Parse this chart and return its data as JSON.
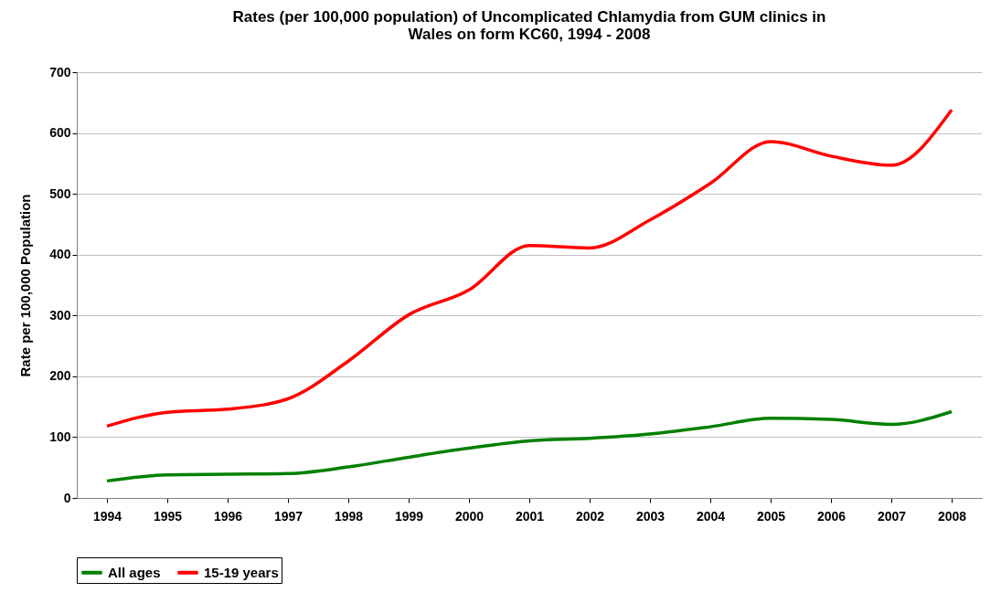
{
  "chart_data": {
    "type": "line",
    "title": "Rates (per 100,000 population) of Uncomplicated Chlamydia from GUM clinics in Wales on form KC60, 1994 - 2008",
    "ylabel": "Rate per 100,000 Population",
    "categories": [
      "1994",
      "1995",
      "1996",
      "1997",
      "1998",
      "1999",
      "2000",
      "2001",
      "2002",
      "2003",
      "2004",
      "2005",
      "2006",
      "2007",
      "2008"
    ],
    "series": [
      {
        "name": "All ages",
        "color": "#008000",
        "values": [
          28,
          38,
          39,
          40,
          51,
          67,
          82,
          94,
          98,
          105,
          117,
          131,
          129,
          121,
          142
        ]
      },
      {
        "name": "15-19 years",
        "color": "#ff0000",
        "values": [
          118,
          141,
          146,
          163,
          225,
          301,
          342,
          415,
          411,
          457,
          517,
          586,
          562,
          547,
          638
        ]
      }
    ],
    "ylim": [
      0,
      700
    ],
    "yticks": [
      0,
      100,
      200,
      300,
      400,
      500,
      600,
      700
    ],
    "grid": "y",
    "legend": "bottom",
    "marker": "none",
    "line_style": "solid"
  }
}
